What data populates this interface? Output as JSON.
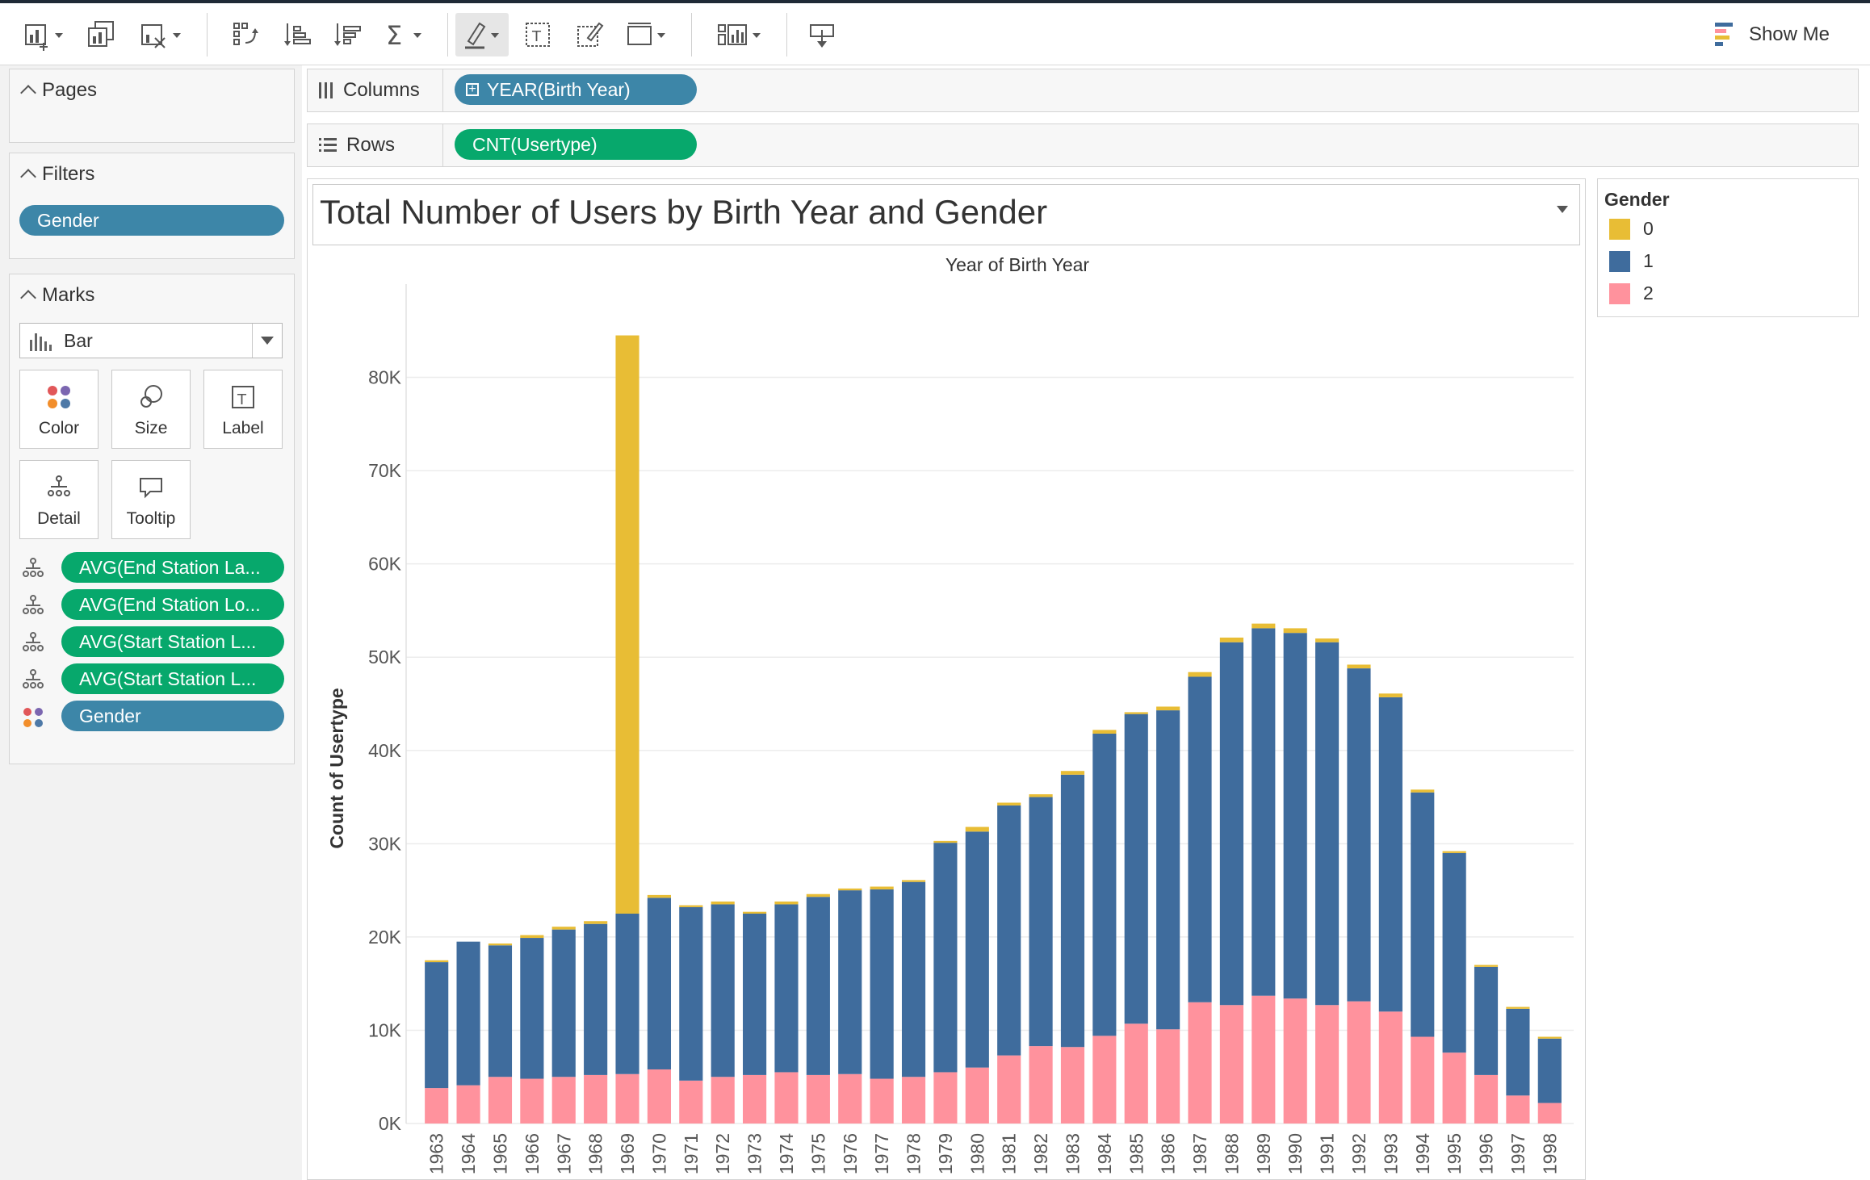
{
  "toolbar": {
    "show_me_label": "Show Me"
  },
  "cards": {
    "pages_title": "Pages",
    "filters_title": "Filters",
    "filters": [
      {
        "label": "Gender"
      }
    ],
    "marks_title": "Marks",
    "mark_type": "Bar",
    "mark_buttons": [
      "Color",
      "Size",
      "Label",
      "Detail",
      "Tooltip"
    ],
    "mark_fields": [
      {
        "label": "AVG(End Station La...",
        "kind": "detail",
        "style": "green"
      },
      {
        "label": "AVG(End Station Lo...",
        "kind": "detail",
        "style": "green"
      },
      {
        "label": "AVG(Start Station L...",
        "kind": "detail",
        "style": "green"
      },
      {
        "label": "AVG(Start Station L...",
        "kind": "detail",
        "style": "green"
      },
      {
        "label": "Gender",
        "kind": "color",
        "style": "blue"
      }
    ]
  },
  "shelves": {
    "columns_label": "Columns",
    "columns_pill": "YEAR(Birth Year)",
    "rows_label": "Rows",
    "rows_pill": "CNT(Usertype)"
  },
  "legend": {
    "title": "Gender",
    "items": [
      {
        "label": "0",
        "color": "#e8bd35"
      },
      {
        "label": "1",
        "color": "#3f6c9d"
      },
      {
        "label": "2",
        "color": "#ff929d"
      }
    ]
  },
  "chart_data": {
    "type": "bar",
    "stacked": true,
    "title": "Total Number of Users by Birth Year and Gender",
    "xlabel": "Year of Birth Year",
    "ylabel": "Count of Usertype",
    "ylim": [
      0,
      90000
    ],
    "yticks": [
      "0K",
      "10K",
      "20K",
      "30K",
      "40K",
      "50K",
      "60K",
      "70K",
      "80K"
    ],
    "categories": [
      "1963",
      "1964",
      "1965",
      "1966",
      "1967",
      "1968",
      "1969",
      "1970",
      "1971",
      "1972",
      "1973",
      "1974",
      "1975",
      "1976",
      "1977",
      "1978",
      "1979",
      "1980",
      "1981",
      "1982",
      "1983",
      "1984",
      "1985",
      "1986",
      "1987",
      "1988",
      "1989",
      "1990",
      "1991",
      "1992",
      "1993",
      "1994",
      "1995",
      "1996",
      "1997",
      "1998"
    ],
    "series": [
      {
        "name": "2",
        "color": "#ff929d",
        "values": [
          3800,
          4100,
          5000,
          4800,
          5000,
          5200,
          5300,
          5800,
          4600,
          5000,
          5200,
          5500,
          5200,
          5300,
          4800,
          5000,
          5500,
          6000,
          7300,
          8300,
          8200,
          9400,
          10700,
          10100,
          13000,
          12700,
          13700,
          13400,
          12700,
          13100,
          12000,
          9300,
          7600,
          5200,
          3000,
          2200
        ]
      },
      {
        "name": "1",
        "color": "#3f6c9d",
        "values": [
          13500,
          15400,
          14100,
          15100,
          15800,
          16200,
          17200,
          18400,
          18600,
          18500,
          17300,
          18000,
          19100,
          19700,
          20300,
          20900,
          24600,
          25300,
          26800,
          26700,
          29200,
          32400,
          33200,
          34200,
          34900,
          38900,
          39400,
          39200,
          38900,
          35700,
          33700,
          26200,
          21400,
          11600,
          9300,
          6900
        ]
      },
      {
        "name": "0",
        "color": "#e8bd35",
        "values": [
          200,
          0,
          200,
          300,
          300,
          300,
          62000,
          300,
          200,
          300,
          200,
          300,
          300,
          200,
          300,
          200,
          200,
          500,
          300,
          300,
          400,
          400,
          200,
          400,
          500,
          500,
          500,
          500,
          400,
          400,
          400,
          300,
          200,
          200,
          200,
          200
        ]
      }
    ]
  }
}
